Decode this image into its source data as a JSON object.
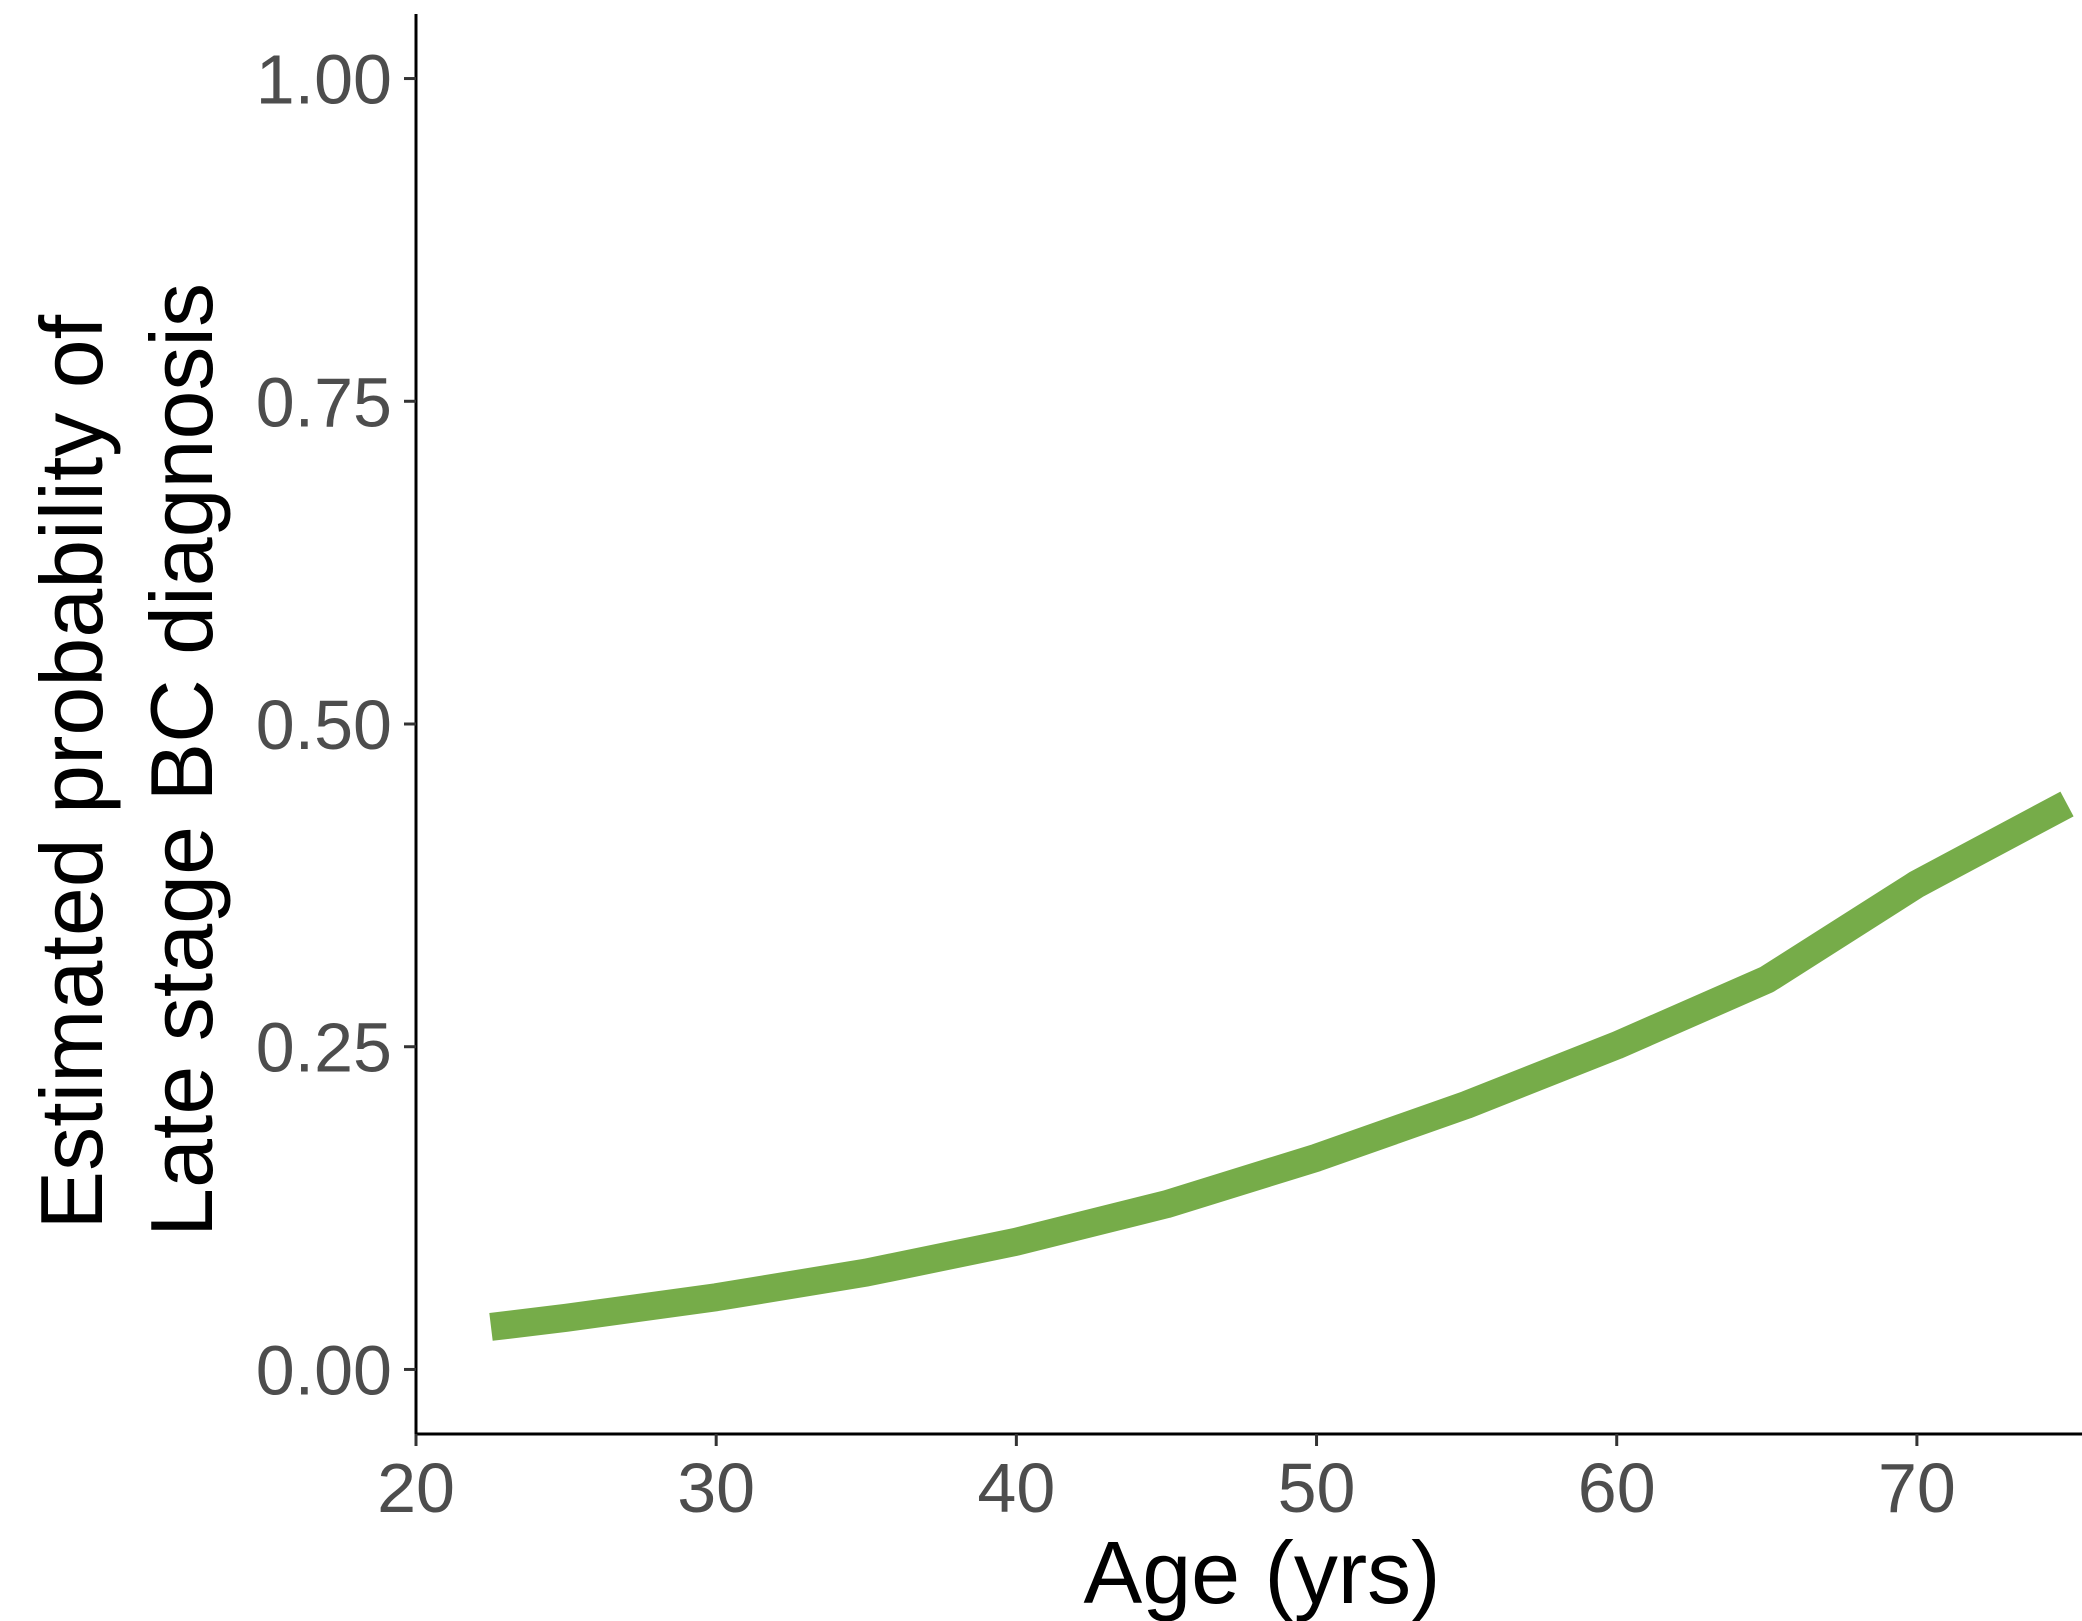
{
  "chart_data": {
    "type": "line",
    "xlabel": "Age (yrs)",
    "ylabel_lines": [
      "Estimated probability of",
      "Late stage BC diagnosis"
    ],
    "xlim": [
      20,
      75.5
    ],
    "ylim": [
      -0.05,
      1.05
    ],
    "x_ticks": [
      20,
      30,
      40,
      50,
      60,
      70
    ],
    "x_tick_labels": [
      "20",
      "30",
      "40",
      "50",
      "60",
      "70"
    ],
    "y_ticks": [
      0,
      0.25,
      0.5,
      0.75,
      1
    ],
    "y_tick_labels": [
      "0.00",
      "0.25",
      "0.50",
      "0.75",
      "1.00"
    ],
    "grid": false,
    "line_color": "#76ac49",
    "series": [
      {
        "x": [
          22.5,
          25,
          30,
          35,
          40,
          45,
          50,
          55,
          60,
          65,
          70,
          75
        ],
        "y": [
          0.033,
          0.04,
          0.056,
          0.075,
          0.099,
          0.128,
          0.164,
          0.205,
          0.251,
          0.302,
          0.376,
          0.438
        ]
      }
    ]
  }
}
